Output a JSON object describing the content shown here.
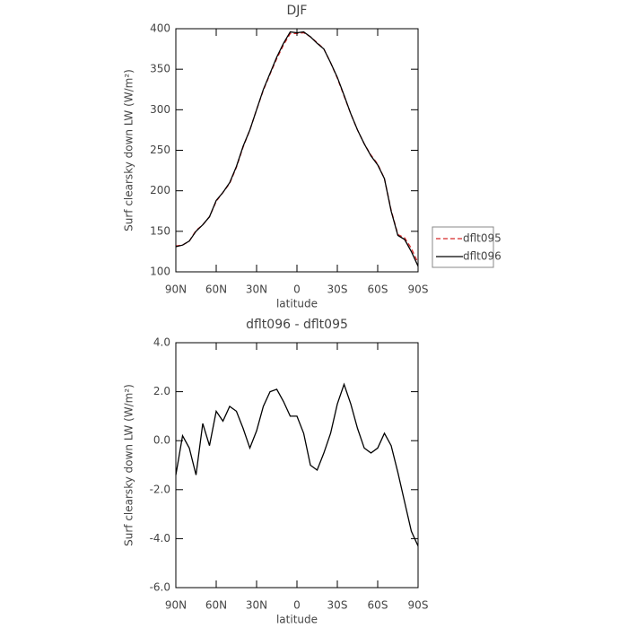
{
  "chart_data": [
    {
      "type": "line",
      "title": "DJF",
      "xlabel": "latitude",
      "ylabel": "Surf clearsky down LW (W/m²)",
      "x": [
        90,
        85,
        80,
        75,
        70,
        65,
        60,
        55,
        50,
        45,
        40,
        35,
        30,
        25,
        20,
        15,
        10,
        5,
        0,
        -5,
        -10,
        -15,
        -20,
        -25,
        -30,
        -35,
        -40,
        -45,
        -50,
        -55,
        -60,
        -65,
        -70,
        -75,
        -80,
        -85,
        -90
      ],
      "series": [
        {
          "name": "dflt095",
          "color": "#d62728",
          "dash": true,
          "values": [
            132,
            133,
            138,
            151,
            158,
            168,
            187,
            198,
            209,
            229,
            254,
            275,
            300,
            324,
            344,
            363,
            380,
            394,
            394,
            395,
            390,
            383,
            375,
            358,
            339,
            317,
            295,
            275,
            258,
            244,
            233,
            215,
            176,
            146,
            142,
            129,
            111
          ]
        },
        {
          "name": "dflt096",
          "color": "#000000",
          "dash": false,
          "values": [
            131,
            133,
            138,
            150,
            158,
            168,
            188,
            198,
            210,
            230,
            255,
            275,
            300,
            325,
            345,
            365,
            382,
            396,
            395,
            396,
            390,
            382,
            375,
            358,
            340,
            318,
            295,
            275,
            258,
            243,
            232,
            215,
            175,
            145,
            140,
            125,
            107
          ]
        }
      ],
      "xlim": [
        90,
        -90
      ],
      "xticks": [
        {
          "value": 90,
          "label": "90N"
        },
        {
          "value": 60,
          "label": "60N"
        },
        {
          "value": 30,
          "label": "30N"
        },
        0,
        {
          "value": -30,
          "label": "30S"
        },
        {
          "value": -60,
          "label": "60S"
        },
        {
          "value": -90,
          "label": "90S"
        }
      ],
      "ylim": [
        100,
        400
      ],
      "yticks": [
        100,
        150,
        200,
        250,
        300,
        350,
        400
      ],
      "legend": "right"
    },
    {
      "type": "line",
      "title": "dflt096 - dflt095",
      "xlabel": "latitude",
      "ylabel": "Surf clearsky down LW (W/m²)",
      "x": [
        90,
        85,
        80,
        75,
        70,
        65,
        60,
        55,
        50,
        45,
        40,
        35,
        30,
        25,
        20,
        15,
        10,
        5,
        0,
        -5,
        -10,
        -15,
        -20,
        -25,
        -30,
        -35,
        -40,
        -45,
        -50,
        -55,
        -60,
        -65,
        -70,
        -75,
        -80,
        -85,
        -90
      ],
      "series": [
        {
          "color": "#000000",
          "dash": false,
          "values": [
            -1.4,
            0.2,
            -0.3,
            -1.4,
            0.7,
            -0.2,
            1.2,
            0.8,
            1.4,
            1.2,
            0.5,
            -0.3,
            0.4,
            1.4,
            2.0,
            2.1,
            1.6,
            1.0,
            1.0,
            0.3,
            -1.0,
            -1.2,
            -0.5,
            0.3,
            1.5,
            2.3,
            1.5,
            0.5,
            -0.3,
            -0.5,
            -0.3,
            0.3,
            -0.2,
            -1.3,
            -2.5,
            -3.7,
            -4.3
          ]
        }
      ],
      "xlim": [
        90,
        -90
      ],
      "xticks": [
        {
          "value": 90,
          "label": "90N"
        },
        {
          "value": 60,
          "label": "60N"
        },
        {
          "value": 30,
          "label": "30N"
        },
        0,
        {
          "value": -30,
          "label": "30S"
        },
        {
          "value": -60,
          "label": "60S"
        },
        {
          "value": -90,
          "label": "90S"
        }
      ],
      "ylim": [
        -6,
        4
      ],
      "yticks": [
        {
          "value": -6,
          "label": "-6.0"
        },
        {
          "value": -4,
          "label": "-4.0"
        },
        {
          "value": -2,
          "label": "-2.0"
        },
        {
          "value": 0,
          "label": "0.0"
        },
        {
          "value": 2,
          "label": "2.0"
        },
        {
          "value": 4,
          "label": "4.0"
        }
      ]
    }
  ]
}
